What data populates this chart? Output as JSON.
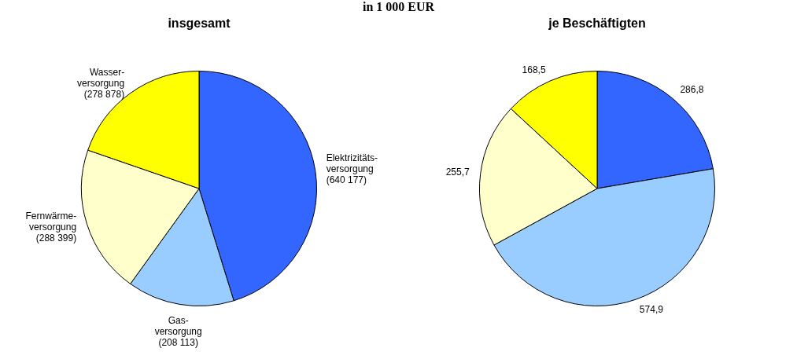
{
  "chart_data": [
    {
      "type": "pie",
      "title": "insgesamt",
      "annotations": [
        "in 1 000 EUR"
      ],
      "categories": [
        "Elektrizitäts-\nversorgung",
        "Gas-\nversorgung",
        "Fernwärme-\nversorgung",
        "Wasser-\nversorgung"
      ],
      "values": [
        640177,
        208113,
        288399,
        278878
      ],
      "value_labels": [
        "(640 177)",
        "(208 113)",
        "(288 399)",
        "(278 878)"
      ],
      "colors": [
        "#3366ff",
        "#99ccff",
        "#ffffcc",
        "#ffff00"
      ],
      "legend": false
    },
    {
      "type": "pie",
      "title": "je Beschäftigten",
      "categories": [
        null,
        null,
        null,
        null
      ],
      "values": [
        286.8,
        574.9,
        255.7,
        168.5
      ],
      "value_labels": [
        "286,8",
        "574,9",
        "255,7",
        "168,5"
      ],
      "colors": [
        "#3366ff",
        "#99ccff",
        "#ffffcc",
        "#ffff00"
      ],
      "legend": false
    }
  ]
}
